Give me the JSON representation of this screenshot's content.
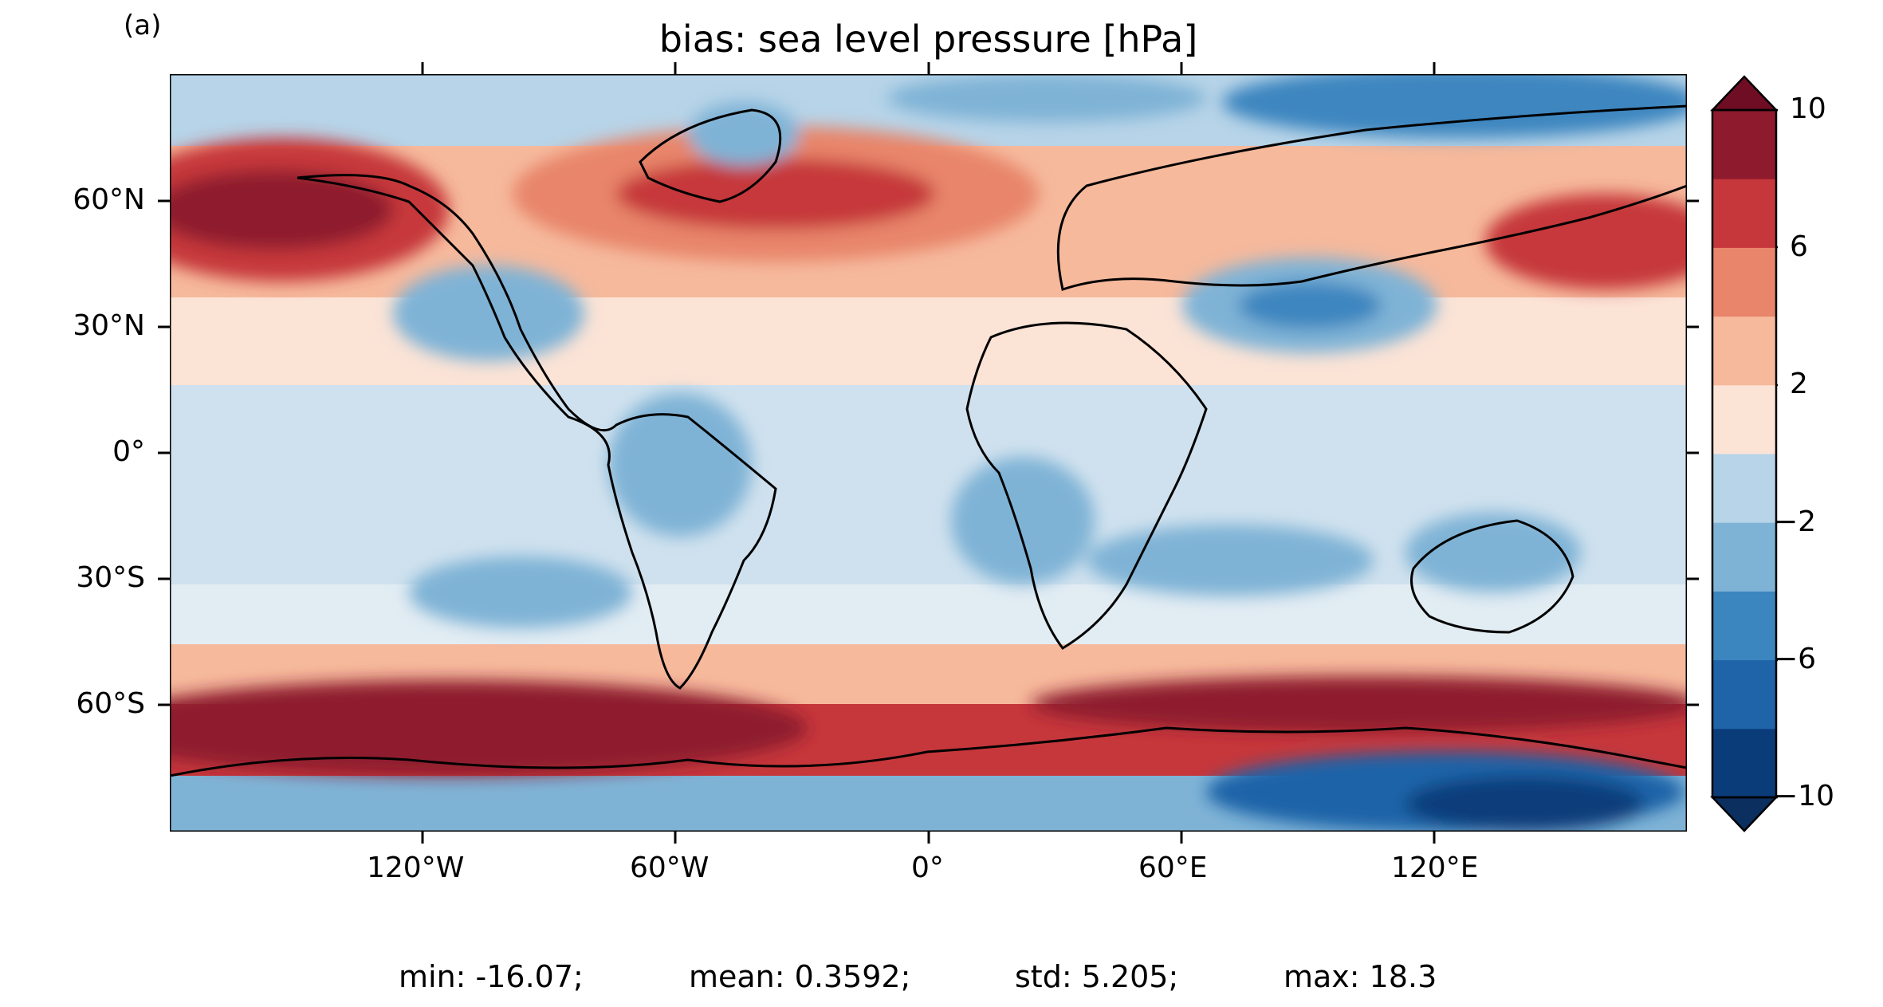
{
  "panel_label": "(a)",
  "title": "bias: sea level pressure [hPa]",
  "colorbar": {
    "tick_labels": [
      "10",
      "6",
      "2",
      "−2",
      "−6",
      "−10"
    ],
    "levels": [
      -10,
      -8,
      -6,
      -4,
      -2,
      0,
      2,
      4,
      6,
      8,
      10
    ],
    "colors": [
      "#0b3c7a",
      "#1f63a8",
      "#3c86c0",
      "#7fb3d6",
      "#b7d4e8",
      "#e2ecf3",
      "#fbe3d6",
      "#f6b99c",
      "#e8856a",
      "#c6373b",
      "#8e1a2d"
    ],
    "extend": "both"
  },
  "axes": {
    "x_tick_labels": [
      "120°W",
      "60°W",
      "0°",
      "60°E",
      "120°E"
    ],
    "y_tick_labels": [
      "60°N",
      "30°N",
      "0°",
      "30°S",
      "60°S"
    ],
    "x_range_deg": [
      -180,
      180
    ],
    "y_range_deg": [
      -90,
      90
    ]
  },
  "stats": {
    "min": "min: -16.07;",
    "mean": "mean: 0.3592;",
    "std": "std: 5.205;",
    "max": "max: 18.3"
  }
}
